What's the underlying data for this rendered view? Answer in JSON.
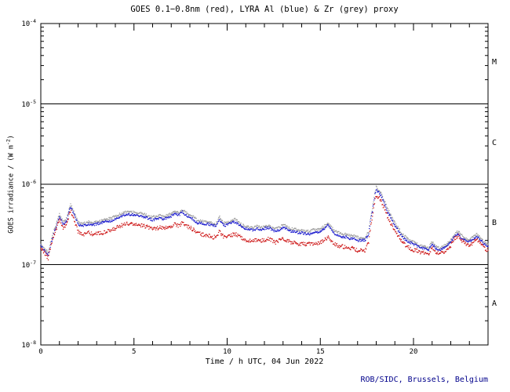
{
  "chart_data": {
    "type": "scatter",
    "title": "GOES 0.1−0.8nm (red), LYRA Al (blue) & Zr (grey) proxy",
    "xlabel": "Time / h UTC, 04 Jun 2022",
    "ylabel_parts": {
      "pre": "GOES irradiance / (W m",
      "sup": "-2",
      "post": ")"
    },
    "credit": "ROB/SIDC, Brussels, Belgium",
    "credit_color": "#00008b",
    "frame_color": "#000000",
    "xlim": [
      0,
      24
    ],
    "ylim_exp": [
      -8,
      -4
    ],
    "xticks_major": [
      0,
      5,
      10,
      15,
      20
    ],
    "x_minor_step": 1,
    "ytick_exps": [
      -4,
      -5,
      -6,
      -7,
      -8
    ],
    "hline_exps": [
      -5,
      -6,
      -7
    ],
    "flare_class_labels": [
      "M",
      "C",
      "B",
      "A"
    ],
    "grid": false,
    "legend": "in-title",
    "x_start": 0,
    "x_step": 0.2,
    "value_scale": 1e-07,
    "series": [
      {
        "name": "LYRA Zr proxy",
        "color": "#9b9b9b",
        "noise": 0.035,
        "values": [
          1.8,
          1.6,
          1.4,
          2.2,
          3.0,
          4.2,
          3.4,
          3.8,
          5.6,
          4.4,
          3.4,
          3.2,
          3.3,
          3.4,
          3.3,
          3.4,
          3.5,
          3.6,
          3.7,
          3.8,
          4.0,
          4.2,
          4.4,
          4.5,
          4.5,
          4.5,
          4.4,
          4.3,
          4.2,
          4.0,
          3.9,
          4.0,
          4.1,
          4.0,
          4.1,
          4.3,
          4.6,
          4.4,
          4.8,
          4.4,
          4.2,
          3.9,
          3.6,
          3.5,
          3.4,
          3.4,
          3.3,
          3.2,
          3.9,
          3.3,
          3.3,
          3.5,
          3.7,
          3.4,
          3.1,
          3.0,
          2.9,
          2.9,
          3.0,
          2.9,
          3.0,
          3.1,
          2.9,
          2.8,
          2.9,
          3.1,
          3.0,
          2.8,
          2.8,
          2.7,
          2.7,
          2.6,
          2.6,
          2.7,
          2.7,
          2.8,
          3.0,
          3.3,
          2.9,
          2.6,
          2.5,
          2.4,
          2.4,
          2.3,
          2.3,
          2.2,
          2.1,
          2.1,
          2.6,
          5.0,
          9.2,
          8.2,
          6.5,
          5.0,
          4.0,
          3.3,
          2.8,
          2.4,
          2.2,
          2.0,
          1.9,
          1.8,
          1.7,
          1.7,
          1.6,
          1.9,
          1.7,
          1.6,
          1.7,
          1.8,
          2.0,
          2.4,
          2.6,
          2.3,
          2.1,
          2.0,
          2.2,
          2.4,
          2.1,
          1.9,
          1.8
        ]
      },
      {
        "name": "LYRA Al proxy",
        "color": "#1414cc",
        "noise": 0.035,
        "values": [
          1.7,
          1.5,
          1.3,
          2.0,
          2.8,
          3.9,
          3.2,
          3.5,
          5.2,
          4.1,
          3.2,
          3.0,
          3.1,
          3.2,
          3.1,
          3.2,
          3.3,
          3.4,
          3.4,
          3.5,
          3.7,
          3.9,
          4.1,
          4.2,
          4.2,
          4.2,
          4.1,
          4.0,
          3.9,
          3.7,
          3.6,
          3.7,
          3.8,
          3.7,
          3.8,
          4.0,
          4.3,
          4.1,
          4.5,
          4.1,
          3.9,
          3.6,
          3.3,
          3.3,
          3.2,
          3.2,
          3.1,
          3.0,
          3.6,
          3.1,
          3.1,
          3.3,
          3.4,
          3.2,
          2.9,
          2.8,
          2.7,
          2.7,
          2.8,
          2.7,
          2.8,
          2.9,
          2.7,
          2.6,
          2.7,
          2.9,
          2.8,
          2.6,
          2.6,
          2.5,
          2.5,
          2.4,
          2.4,
          2.5,
          2.5,
          2.6,
          2.8,
          3.1,
          2.7,
          2.4,
          2.3,
          2.2,
          2.2,
          2.1,
          2.1,
          2.0,
          2.0,
          2.0,
          2.4,
          4.6,
          8.6,
          7.6,
          6.0,
          4.6,
          3.7,
          3.1,
          2.6,
          2.2,
          2.0,
          1.9,
          1.8,
          1.7,
          1.6,
          1.6,
          1.5,
          1.8,
          1.6,
          1.5,
          1.6,
          1.7,
          1.9,
          2.2,
          2.4,
          2.1,
          2.0,
          1.9,
          2.1,
          2.2,
          2.0,
          1.8,
          1.7
        ]
      },
      {
        "name": "GOES 0.1-0.8nm",
        "color": "#cc1111",
        "noise": 0.055,
        "values": [
          1.6,
          1.4,
          1.2,
          1.9,
          2.6,
          3.6,
          2.9,
          3.2,
          4.7,
          3.5,
          2.6,
          2.4,
          2.4,
          2.5,
          2.4,
          2.4,
          2.5,
          2.5,
          2.6,
          2.7,
          2.8,
          3.0,
          3.1,
          3.2,
          3.2,
          3.2,
          3.1,
          3.1,
          3.0,
          2.9,
          2.8,
          2.8,
          2.9,
          2.8,
          2.9,
          3.0,
          3.2,
          3.0,
          3.3,
          3.0,
          2.9,
          2.7,
          2.5,
          2.4,
          2.3,
          2.3,
          2.2,
          2.2,
          2.6,
          2.2,
          2.2,
          2.3,
          2.4,
          2.3,
          2.1,
          2.0,
          2.0,
          2.0,
          2.0,
          2.0,
          2.0,
          2.1,
          2.0,
          1.9,
          2.0,
          2.1,
          2.0,
          1.9,
          1.9,
          1.8,
          1.8,
          1.8,
          1.8,
          1.8,
          1.8,
          1.9,
          2.0,
          2.2,
          1.9,
          1.8,
          1.7,
          1.7,
          1.6,
          1.6,
          1.6,
          1.5,
          1.5,
          1.5,
          1.9,
          4.0,
          7.3,
          6.6,
          5.2,
          4.0,
          3.2,
          2.6,
          2.2,
          1.9,
          1.7,
          1.6,
          1.5,
          1.5,
          1.4,
          1.4,
          1.3,
          1.6,
          1.4,
          1.4,
          1.4,
          1.5,
          1.7,
          2.1,
          2.3,
          2.0,
          1.8,
          1.7,
          1.9,
          2.1,
          1.8,
          1.6,
          1.5
        ]
      }
    ]
  }
}
